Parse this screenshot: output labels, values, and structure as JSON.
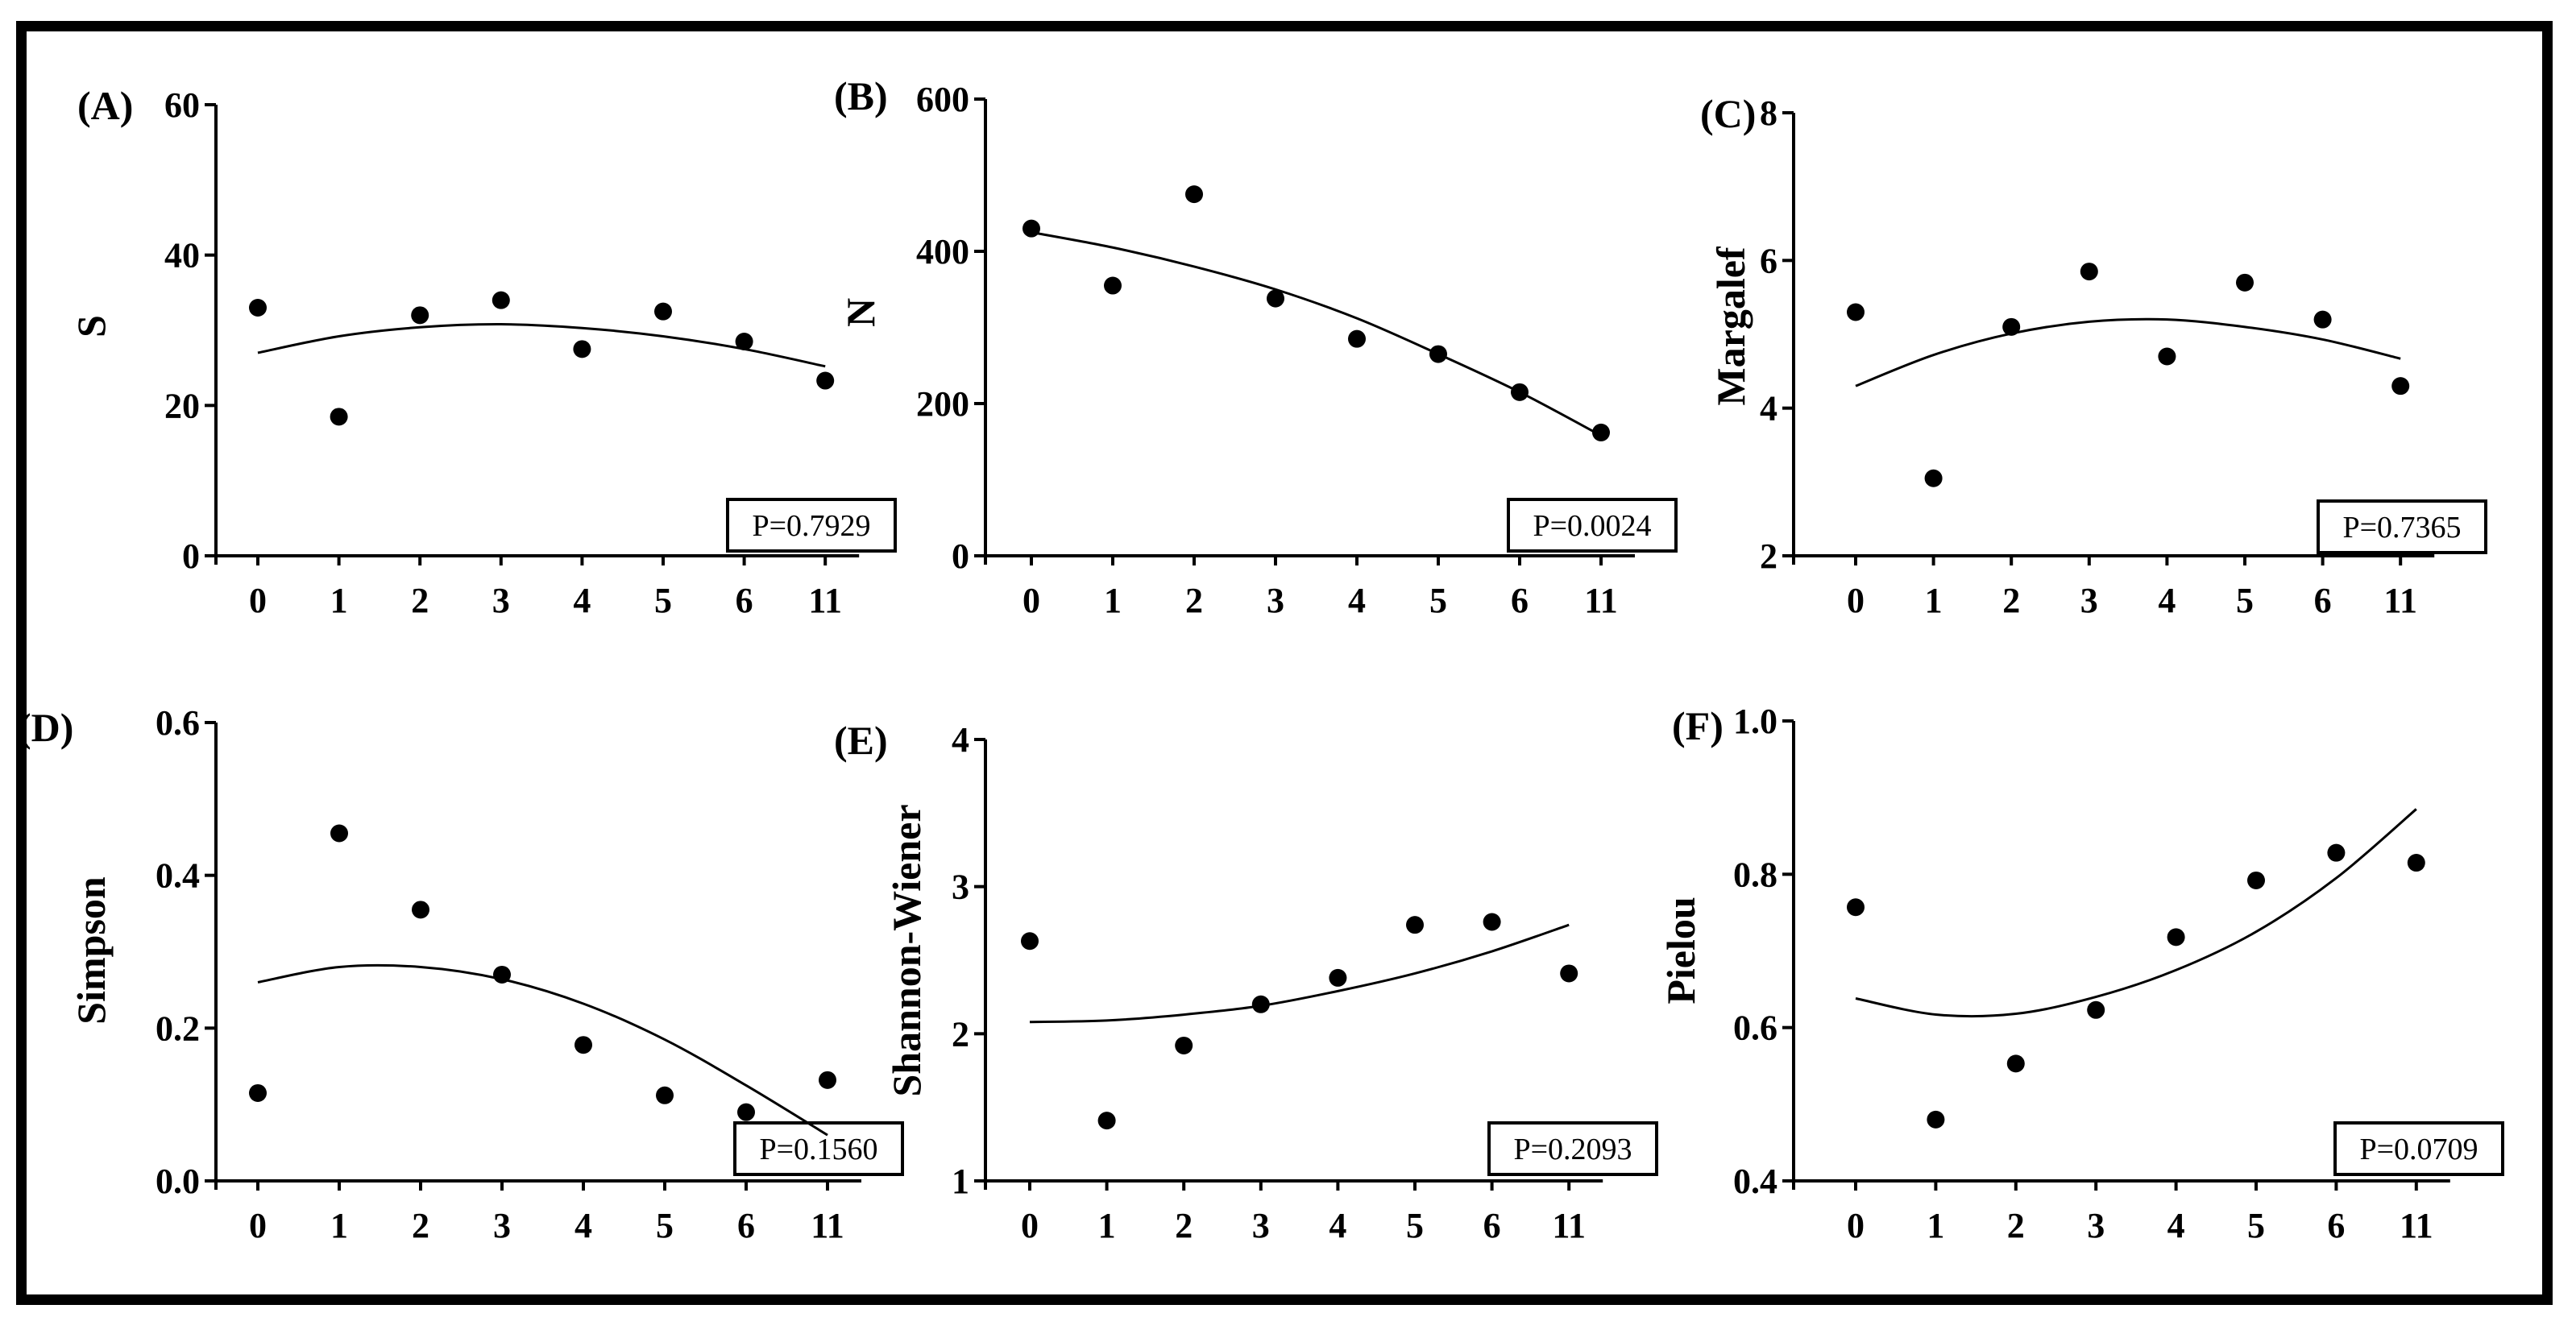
{
  "figure": {
    "background": "#ffffff",
    "frame_color": "#000000"
  },
  "chart_data": [
    {
      "type": "scatter",
      "panel_label": "(A)",
      "ylabel": "S",
      "xlabel": "",
      "categories": [
        "0",
        "1",
        "2",
        "3",
        "4",
        "5",
        "6",
        "11"
      ],
      "values": [
        33,
        18.5,
        32,
        34,
        27.5,
        32.5,
        28.5,
        23.3
      ],
      "fit": [
        27,
        29.2,
        30.4,
        30.8,
        30.3,
        29.2,
        27.5,
        25.2
      ],
      "ylim": [
        0,
        60
      ],
      "yticks": [
        0,
        20,
        40,
        60
      ],
      "p_value": "P=0.7929"
    },
    {
      "type": "scatter",
      "panel_label": "(B)",
      "ylabel": "N",
      "xlabel": "",
      "categories": [
        "0",
        "1",
        "2",
        "3",
        "4",
        "5",
        "6",
        "11"
      ],
      "values": [
        430,
        355,
        475,
        338,
        285,
        265,
        215,
        162
      ],
      "fit": [
        425,
        405,
        380,
        350,
        312,
        265,
        215,
        158
      ],
      "ylim": [
        0,
        600
      ],
      "yticks": [
        0,
        200,
        400,
        600
      ],
      "p_value": "P=0.0024"
    },
    {
      "type": "scatter",
      "panel_label": "(C)",
      "ylabel": "Margalef",
      "xlabel": "",
      "categories": [
        "0",
        "1",
        "2",
        "3",
        "4",
        "5",
        "6",
        "11"
      ],
      "values": [
        5.3,
        3.05,
        5.1,
        5.85,
        4.7,
        5.7,
        5.2,
        4.3
      ],
      "fit": [
        4.3,
        4.72,
        5.01,
        5.17,
        5.2,
        5.1,
        4.93,
        4.67
      ],
      "ylim": [
        2,
        8
      ],
      "yticks": [
        2,
        4,
        6,
        8
      ],
      "p_value": "P=0.7365"
    },
    {
      "type": "scatter",
      "panel_label": "(D)",
      "ylabel": "Simpson",
      "xlabel": "",
      "categories": [
        "0",
        "1",
        "2",
        "3",
        "4",
        "5",
        "6",
        "11"
      ],
      "values": [
        0.115,
        0.455,
        0.355,
        0.27,
        0.178,
        0.112,
        0.09,
        0.132
      ],
      "fit": [
        0.26,
        0.28,
        0.28,
        0.264,
        0.232,
        0.185,
        0.125,
        0.06
      ],
      "ylim": [
        0,
        0.6
      ],
      "yticks": [
        0.0,
        0.2,
        0.4,
        0.6
      ],
      "ytick_labels": [
        "0.0",
        "0.2",
        "0.4",
        "0.6"
      ],
      "p_value": "P=0.1560"
    },
    {
      "type": "scatter",
      "panel_label": "(E)",
      "ylabel": "Shannon-Wiener",
      "xlabel": "",
      "categories": [
        "0",
        "1",
        "2",
        "3",
        "4",
        "5",
        "6",
        "11"
      ],
      "values": [
        2.63,
        1.41,
        1.92,
        2.2,
        2.38,
        2.74,
        2.76,
        2.41
      ],
      "fit": [
        2.08,
        2.09,
        2.13,
        2.19,
        2.29,
        2.41,
        2.56,
        2.74
      ],
      "ylim": [
        1,
        4
      ],
      "yticks": [
        1,
        2,
        3,
        4
      ],
      "p_value": "P=0.2093"
    },
    {
      "type": "scatter",
      "panel_label": "(F)",
      "ylabel": "Pielou",
      "xlabel": "",
      "categories": [
        "0",
        "1",
        "2",
        "3",
        "4",
        "5",
        "6",
        "11"
      ],
      "values": [
        0.757,
        0.48,
        0.553,
        0.623,
        0.718,
        0.792,
        0.828,
        0.815
      ],
      "fit": [
        0.638,
        0.617,
        0.618,
        0.64,
        0.675,
        0.725,
        0.795,
        0.885
      ],
      "ylim": [
        0.4,
        1.0
      ],
      "yticks": [
        0.4,
        0.6,
        0.8,
        1.0
      ],
      "ytick_labels": [
        "0.4",
        "0.6",
        "0.8",
        "1.0"
      ],
      "p_value": "P=0.0709"
    }
  ]
}
